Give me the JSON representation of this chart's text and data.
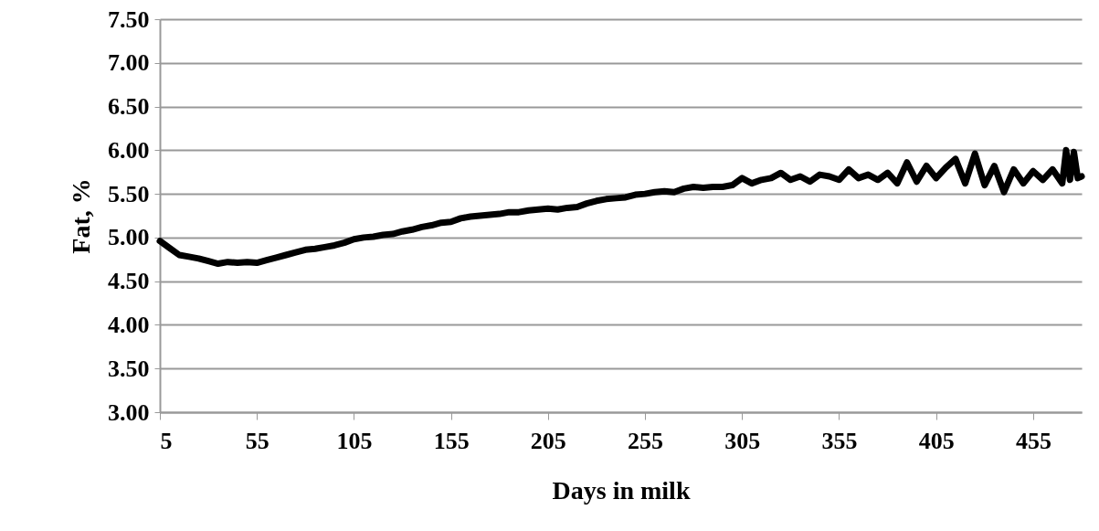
{
  "chart_data": {
    "type": "line",
    "xlabel": "Days in milk",
    "ylabel": "Fat, %",
    "xlim": [
      5,
      480
    ],
    "xticks": [
      5,
      55,
      105,
      155,
      205,
      255,
      305,
      355,
      405,
      455
    ],
    "ylim": [
      3,
      7.5
    ],
    "yticks": [
      {
        "value": 3,
        "label": "3.00"
      },
      {
        "value": 3.5,
        "label": "3.50"
      },
      {
        "value": 4,
        "label": "4.00"
      },
      {
        "value": 4.5,
        "label": "4.50"
      },
      {
        "value": 5,
        "label": "5.00"
      },
      {
        "value": 5.5,
        "label": "5.50"
      },
      {
        "value": 6,
        "label": "6.00"
      },
      {
        "value": 6.5,
        "label": "6.50"
      },
      {
        "value": 7,
        "label": "7.00"
      },
      {
        "value": 7.5,
        "label": "7.50"
      }
    ],
    "grid": "y",
    "marker": "none",
    "line_style": "solid",
    "x": [
      5,
      10,
      15,
      20,
      25,
      30,
      35,
      40,
      45,
      50,
      55,
      60,
      65,
      70,
      75,
      80,
      85,
      90,
      95,
      100,
      105,
      110,
      115,
      120,
      125,
      130,
      135,
      140,
      145,
      150,
      155,
      160,
      165,
      170,
      175,
      180,
      185,
      190,
      195,
      200,
      205,
      210,
      215,
      220,
      225,
      230,
      235,
      240,
      245,
      250,
      255,
      260,
      265,
      270,
      275,
      280,
      285,
      290,
      295,
      300,
      305,
      310,
      315,
      320,
      325,
      330,
      335,
      340,
      345,
      350,
      355,
      360,
      365,
      370,
      375,
      380,
      385,
      390,
      395,
      400,
      405,
      410,
      415,
      420,
      425,
      430,
      435,
      440,
      445,
      450,
      455,
      460,
      465,
      470,
      472,
      474,
      476,
      478,
      480
    ],
    "series": [
      {
        "color": "#000000",
        "values": [
          4.96,
          4.88,
          4.8,
          4.78,
          4.76,
          4.73,
          4.7,
          4.72,
          4.71,
          4.72,
          4.71,
          4.74,
          4.77,
          4.8,
          4.83,
          4.86,
          4.87,
          4.89,
          4.91,
          4.94,
          4.98,
          5.0,
          5.01,
          5.03,
          5.04,
          5.07,
          5.09,
          5.12,
          5.14,
          5.17,
          5.18,
          5.22,
          5.24,
          5.25,
          5.26,
          5.27,
          5.29,
          5.29,
          5.31,
          5.32,
          5.33,
          5.32,
          5.34,
          5.35,
          5.39,
          5.42,
          5.44,
          5.45,
          5.46,
          5.49,
          5.5,
          5.52,
          5.53,
          5.52,
          5.56,
          5.58,
          5.57,
          5.58,
          5.58,
          5.6,
          5.68,
          5.62,
          5.66,
          5.68,
          5.74,
          5.66,
          5.7,
          5.64,
          5.72,
          5.7,
          5.66,
          5.78,
          5.68,
          5.72,
          5.66,
          5.74,
          5.62,
          5.86,
          5.64,
          5.82,
          5.68,
          5.8,
          5.9,
          5.62,
          5.96,
          5.6,
          5.82,
          5.52,
          5.78,
          5.62,
          5.76,
          5.66,
          5.78,
          5.62,
          6.0,
          5.66,
          5.98,
          5.68,
          5.7
        ]
      }
    ]
  }
}
